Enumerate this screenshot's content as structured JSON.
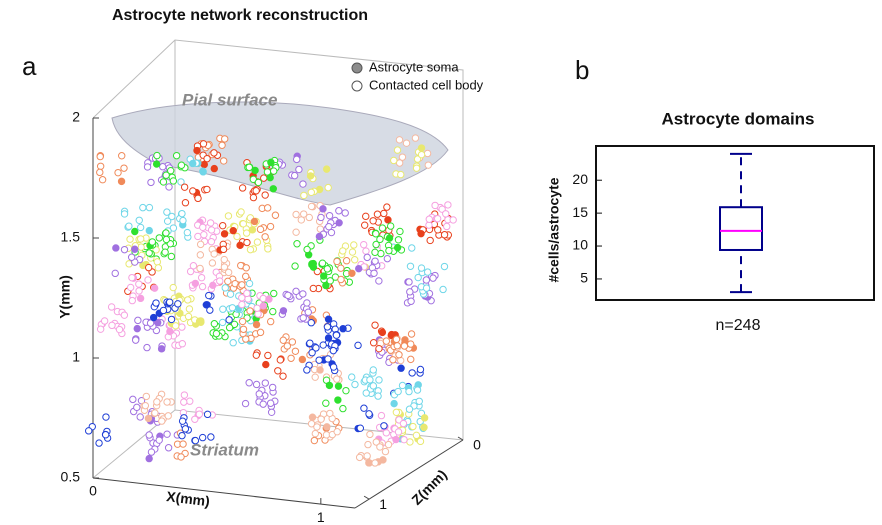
{
  "title": "Astrocyte network reconstruction",
  "chart_data": [
    {
      "type": "scatter3d",
      "panel": "a",
      "xlabel": "X(mm)",
      "ylabel": "Y(mm)",
      "zlabel": "Z(mm)",
      "xlim": [
        0,
        1.15
      ],
      "xticks": [
        0,
        1
      ],
      "ylim": [
        0.5,
        2
      ],
      "yticks": [
        0.5,
        1,
        1.5,
        2
      ],
      "zlim": [
        0,
        1.15
      ],
      "zticks": [
        0,
        1
      ],
      "annotations": [
        "Pial surface",
        "Striatum"
      ],
      "legend": [
        {
          "name": "Astrocyte soma",
          "color": "#8c8c8c"
        },
        {
          "name": "Contacted cell body",
          "color": "#ffffff"
        }
      ],
      "palette": [
        "#e8401c",
        "#f08a5a",
        "#1f3fd6",
        "#6fd6e8",
        "#2ee02e",
        "#f5a0e0",
        "#e8e870",
        "#a070e0",
        "#f4b8a0"
      ]
    },
    {
      "type": "box",
      "panel": "b",
      "title": "Astrocyte domains",
      "ylabel": "#cells/astrocyte",
      "xlabel": "n=248",
      "ylim": [
        1.8,
        25.2
      ],
      "yticks": [
        5,
        10,
        15,
        20
      ],
      "box": {
        "whislo": 3,
        "q1": 9.4,
        "med": 12.3,
        "q3": 15.9,
        "whishi": 24
      },
      "color": "#00008b",
      "median_color": "#ff00ff"
    }
  ]
}
